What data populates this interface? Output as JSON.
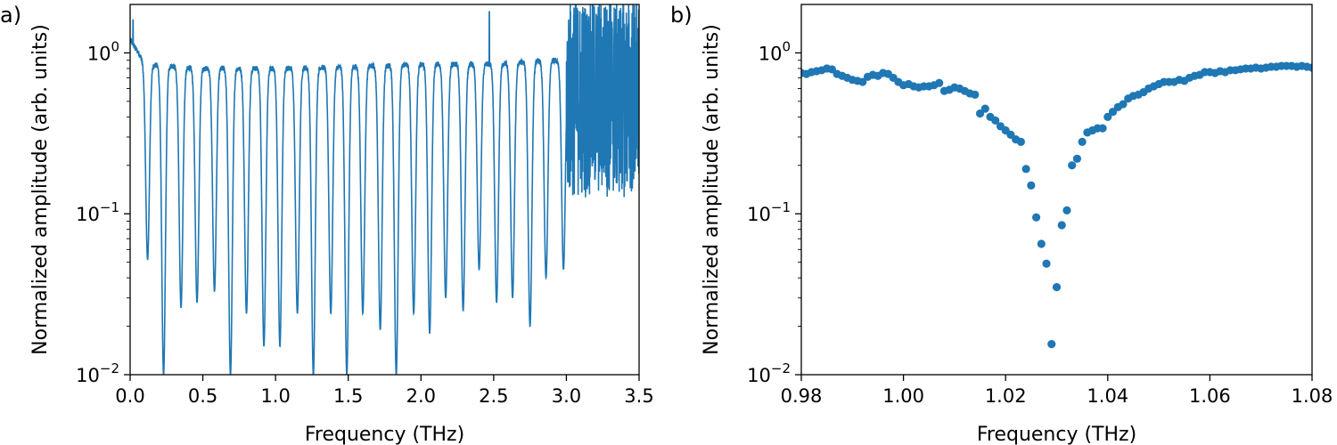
{
  "chart_data": [
    {
      "type": "line",
      "panel_label": "a)",
      "xlabel": "Frequency (THz)",
      "ylabel": "Normalized amplitude (arb. units)",
      "xlim": [
        0.0,
        3.5
      ],
      "ylim": [
        0.01,
        2.0
      ],
      "yscale": "log",
      "grid": false,
      "color": "#1f77b4",
      "x_ticks": [
        {
          "value": 0.0,
          "label": "0.0"
        },
        {
          "value": 0.5,
          "label": "0.5"
        },
        {
          "value": 1.0,
          "label": "1.0"
        },
        {
          "value": 1.5,
          "label": "1.5"
        },
        {
          "value": 2.0,
          "label": "2.0"
        },
        {
          "value": 2.5,
          "label": "2.5"
        },
        {
          "value": 3.0,
          "label": "3.0"
        },
        {
          "value": 3.5,
          "label": "3.5"
        }
      ],
      "y_ticks": [
        {
          "value": 0.01,
          "base": "10",
          "exp": "−2"
        },
        {
          "value": 0.1,
          "base": "10",
          "exp": "−1"
        },
        {
          "value": 1.0,
          "base": "10",
          "exp": "0"
        }
      ],
      "resonance_dips": [
        {
          "x": 0.12,
          "y": 0.052
        },
        {
          "x": 0.23,
          "y": 0.01
        },
        {
          "x": 0.35,
          "y": 0.026
        },
        {
          "x": 0.46,
          "y": 0.028
        },
        {
          "x": 0.58,
          "y": 0.033
        },
        {
          "x": 0.69,
          "y": 0.01
        },
        {
          "x": 0.8,
          "y": 0.024
        },
        {
          "x": 0.92,
          "y": 0.015
        },
        {
          "x": 1.03,
          "y": 0.015
        },
        {
          "x": 1.15,
          "y": 0.024
        },
        {
          "x": 1.26,
          "y": 0.01
        },
        {
          "x": 1.38,
          "y": 0.024
        },
        {
          "x": 1.49,
          "y": 0.01
        },
        {
          "x": 1.6,
          "y": 0.024
        },
        {
          "x": 1.72,
          "y": 0.019
        },
        {
          "x": 1.83,
          "y": 0.01
        },
        {
          "x": 1.95,
          "y": 0.024
        },
        {
          "x": 2.06,
          "y": 0.018
        },
        {
          "x": 2.17,
          "y": 0.03
        },
        {
          "x": 2.29,
          "y": 0.025
        },
        {
          "x": 2.4,
          "y": 0.045
        },
        {
          "x": 2.52,
          "y": 0.028
        },
        {
          "x": 2.63,
          "y": 0.03
        },
        {
          "x": 2.75,
          "y": 0.02
        },
        {
          "x": 2.86,
          "y": 0.04
        },
        {
          "x": 2.98,
          "y": 0.045
        }
      ],
      "baseline_amplitude": [
        {
          "x": 0.0,
          "y": 1.2
        },
        {
          "x": 0.1,
          "y": 0.85
        },
        {
          "x": 0.5,
          "y": 0.8
        },
        {
          "x": 1.0,
          "y": 0.8
        },
        {
          "x": 1.5,
          "y": 0.82
        },
        {
          "x": 2.0,
          "y": 0.85
        },
        {
          "x": 2.5,
          "y": 0.85
        },
        {
          "x": 2.9,
          "y": 0.9
        }
      ],
      "noise_region_x": [
        3.0,
        3.5
      ],
      "spike_points": [
        {
          "x": 0.02,
          "y": 1.6
        },
        {
          "x": 2.47,
          "y": 1.8
        }
      ]
    },
    {
      "type": "scatter",
      "panel_label": "b)",
      "xlabel": "Frequency (THz)",
      "ylabel": "Normalized amplitude (arb. units)",
      "xlim": [
        0.98,
        1.08
      ],
      "ylim": [
        0.01,
        2.0
      ],
      "yscale": "log",
      "grid": false,
      "color": "#1f77b4",
      "x_ticks": [
        {
          "value": 0.98,
          "label": "0.98"
        },
        {
          "value": 1.0,
          "label": "1.00"
        },
        {
          "value": 1.02,
          "label": "1.02"
        },
        {
          "value": 1.04,
          "label": "1.04"
        },
        {
          "value": 1.06,
          "label": "1.06"
        },
        {
          "value": 1.08,
          "label": "1.08"
        }
      ],
      "y_ticks": [
        {
          "value": 0.01,
          "base": "10",
          "exp": "−2"
        },
        {
          "value": 0.1,
          "base": "10",
          "exp": "−1"
        },
        {
          "value": 1.0,
          "base": "10",
          "exp": "0"
        }
      ],
      "points": [
        {
          "x": 0.98,
          "y": 0.75
        },
        {
          "x": 0.981,
          "y": 0.74
        },
        {
          "x": 0.982,
          "y": 0.76
        },
        {
          "x": 0.983,
          "y": 0.77
        },
        {
          "x": 0.984,
          "y": 0.78
        },
        {
          "x": 0.985,
          "y": 0.8
        },
        {
          "x": 0.986,
          "y": 0.79
        },
        {
          "x": 0.987,
          "y": 0.74
        },
        {
          "x": 0.988,
          "y": 0.72
        },
        {
          "x": 0.989,
          "y": 0.7
        },
        {
          "x": 0.99,
          "y": 0.68
        },
        {
          "x": 0.991,
          "y": 0.67
        },
        {
          "x": 0.992,
          "y": 0.66
        },
        {
          "x": 0.993,
          "y": 0.71
        },
        {
          "x": 0.994,
          "y": 0.73
        },
        {
          "x": 0.995,
          "y": 0.72
        },
        {
          "x": 0.996,
          "y": 0.75
        },
        {
          "x": 0.997,
          "y": 0.74
        },
        {
          "x": 0.998,
          "y": 0.7
        },
        {
          "x": 0.999,
          "y": 0.66
        },
        {
          "x": 1.0,
          "y": 0.63
        },
        {
          "x": 1.001,
          "y": 0.64
        },
        {
          "x": 1.002,
          "y": 0.62
        },
        {
          "x": 1.003,
          "y": 0.61
        },
        {
          "x": 1.004,
          "y": 0.62
        },
        {
          "x": 1.005,
          "y": 0.62
        },
        {
          "x": 1.006,
          "y": 0.63
        },
        {
          "x": 1.007,
          "y": 0.65
        },
        {
          "x": 1.008,
          "y": 0.58
        },
        {
          "x": 1.009,
          "y": 0.59
        },
        {
          "x": 1.01,
          "y": 0.61
        },
        {
          "x": 1.011,
          "y": 0.6
        },
        {
          "x": 1.012,
          "y": 0.58
        },
        {
          "x": 1.013,
          "y": 0.56
        },
        {
          "x": 1.014,
          "y": 0.55
        },
        {
          "x": 1.015,
          "y": 0.42
        },
        {
          "x": 1.016,
          "y": 0.45
        },
        {
          "x": 1.017,
          "y": 0.4
        },
        {
          "x": 1.018,
          "y": 0.38
        },
        {
          "x": 1.019,
          "y": 0.35
        },
        {
          "x": 1.02,
          "y": 0.33
        },
        {
          "x": 1.021,
          "y": 0.31
        },
        {
          "x": 1.022,
          "y": 0.29
        },
        {
          "x": 1.023,
          "y": 0.28
        },
        {
          "x": 1.024,
          "y": 0.19
        },
        {
          "x": 1.025,
          "y": 0.15
        },
        {
          "x": 1.026,
          "y": 0.095
        },
        {
          "x": 1.027,
          "y": 0.065
        },
        {
          "x": 1.028,
          "y": 0.049
        },
        {
          "x": 1.029,
          "y": 0.0155
        },
        {
          "x": 1.03,
          "y": 0.035
        },
        {
          "x": 1.031,
          "y": 0.085
        },
        {
          "x": 1.032,
          "y": 0.105
        },
        {
          "x": 1.033,
          "y": 0.2
        },
        {
          "x": 1.034,
          "y": 0.22
        },
        {
          "x": 1.035,
          "y": 0.28
        },
        {
          "x": 1.036,
          "y": 0.32
        },
        {
          "x": 1.037,
          "y": 0.33
        },
        {
          "x": 1.038,
          "y": 0.34
        },
        {
          "x": 1.039,
          "y": 0.34
        },
        {
          "x": 1.04,
          "y": 0.4
        },
        {
          "x": 1.041,
          "y": 0.43
        },
        {
          "x": 1.042,
          "y": 0.46
        },
        {
          "x": 1.043,
          "y": 0.48
        },
        {
          "x": 1.044,
          "y": 0.52
        },
        {
          "x": 1.045,
          "y": 0.54
        },
        {
          "x": 1.046,
          "y": 0.55
        },
        {
          "x": 1.047,
          "y": 0.57
        },
        {
          "x": 1.048,
          "y": 0.6
        },
        {
          "x": 1.049,
          "y": 0.62
        },
        {
          "x": 1.05,
          "y": 0.64
        },
        {
          "x": 1.051,
          "y": 0.66
        },
        {
          "x": 1.052,
          "y": 0.66
        },
        {
          "x": 1.053,
          "y": 0.66
        },
        {
          "x": 1.054,
          "y": 0.68
        },
        {
          "x": 1.055,
          "y": 0.67
        },
        {
          "x": 1.056,
          "y": 0.7
        },
        {
          "x": 1.057,
          "y": 0.72
        },
        {
          "x": 1.058,
          "y": 0.73
        },
        {
          "x": 1.059,
          "y": 0.76
        },
        {
          "x": 1.06,
          "y": 0.76
        },
        {
          "x": 1.061,
          "y": 0.75
        },
        {
          "x": 1.062,
          "y": 0.77
        },
        {
          "x": 1.063,
          "y": 0.76
        },
        {
          "x": 1.064,
          "y": 0.78
        },
        {
          "x": 1.065,
          "y": 0.78
        },
        {
          "x": 1.066,
          "y": 0.79
        },
        {
          "x": 1.067,
          "y": 0.8
        },
        {
          "x": 1.068,
          "y": 0.8
        },
        {
          "x": 1.069,
          "y": 0.81
        },
        {
          "x": 1.07,
          "y": 0.8
        },
        {
          "x": 1.071,
          "y": 0.81
        },
        {
          "x": 1.072,
          "y": 0.82
        },
        {
          "x": 1.073,
          "y": 0.82
        },
        {
          "x": 1.074,
          "y": 0.83
        },
        {
          "x": 1.075,
          "y": 0.83
        },
        {
          "x": 1.076,
          "y": 0.83
        },
        {
          "x": 1.077,
          "y": 0.82
        },
        {
          "x": 1.078,
          "y": 0.83
        },
        {
          "x": 1.079,
          "y": 0.82
        },
        {
          "x": 1.08,
          "y": 0.81
        }
      ]
    }
  ]
}
